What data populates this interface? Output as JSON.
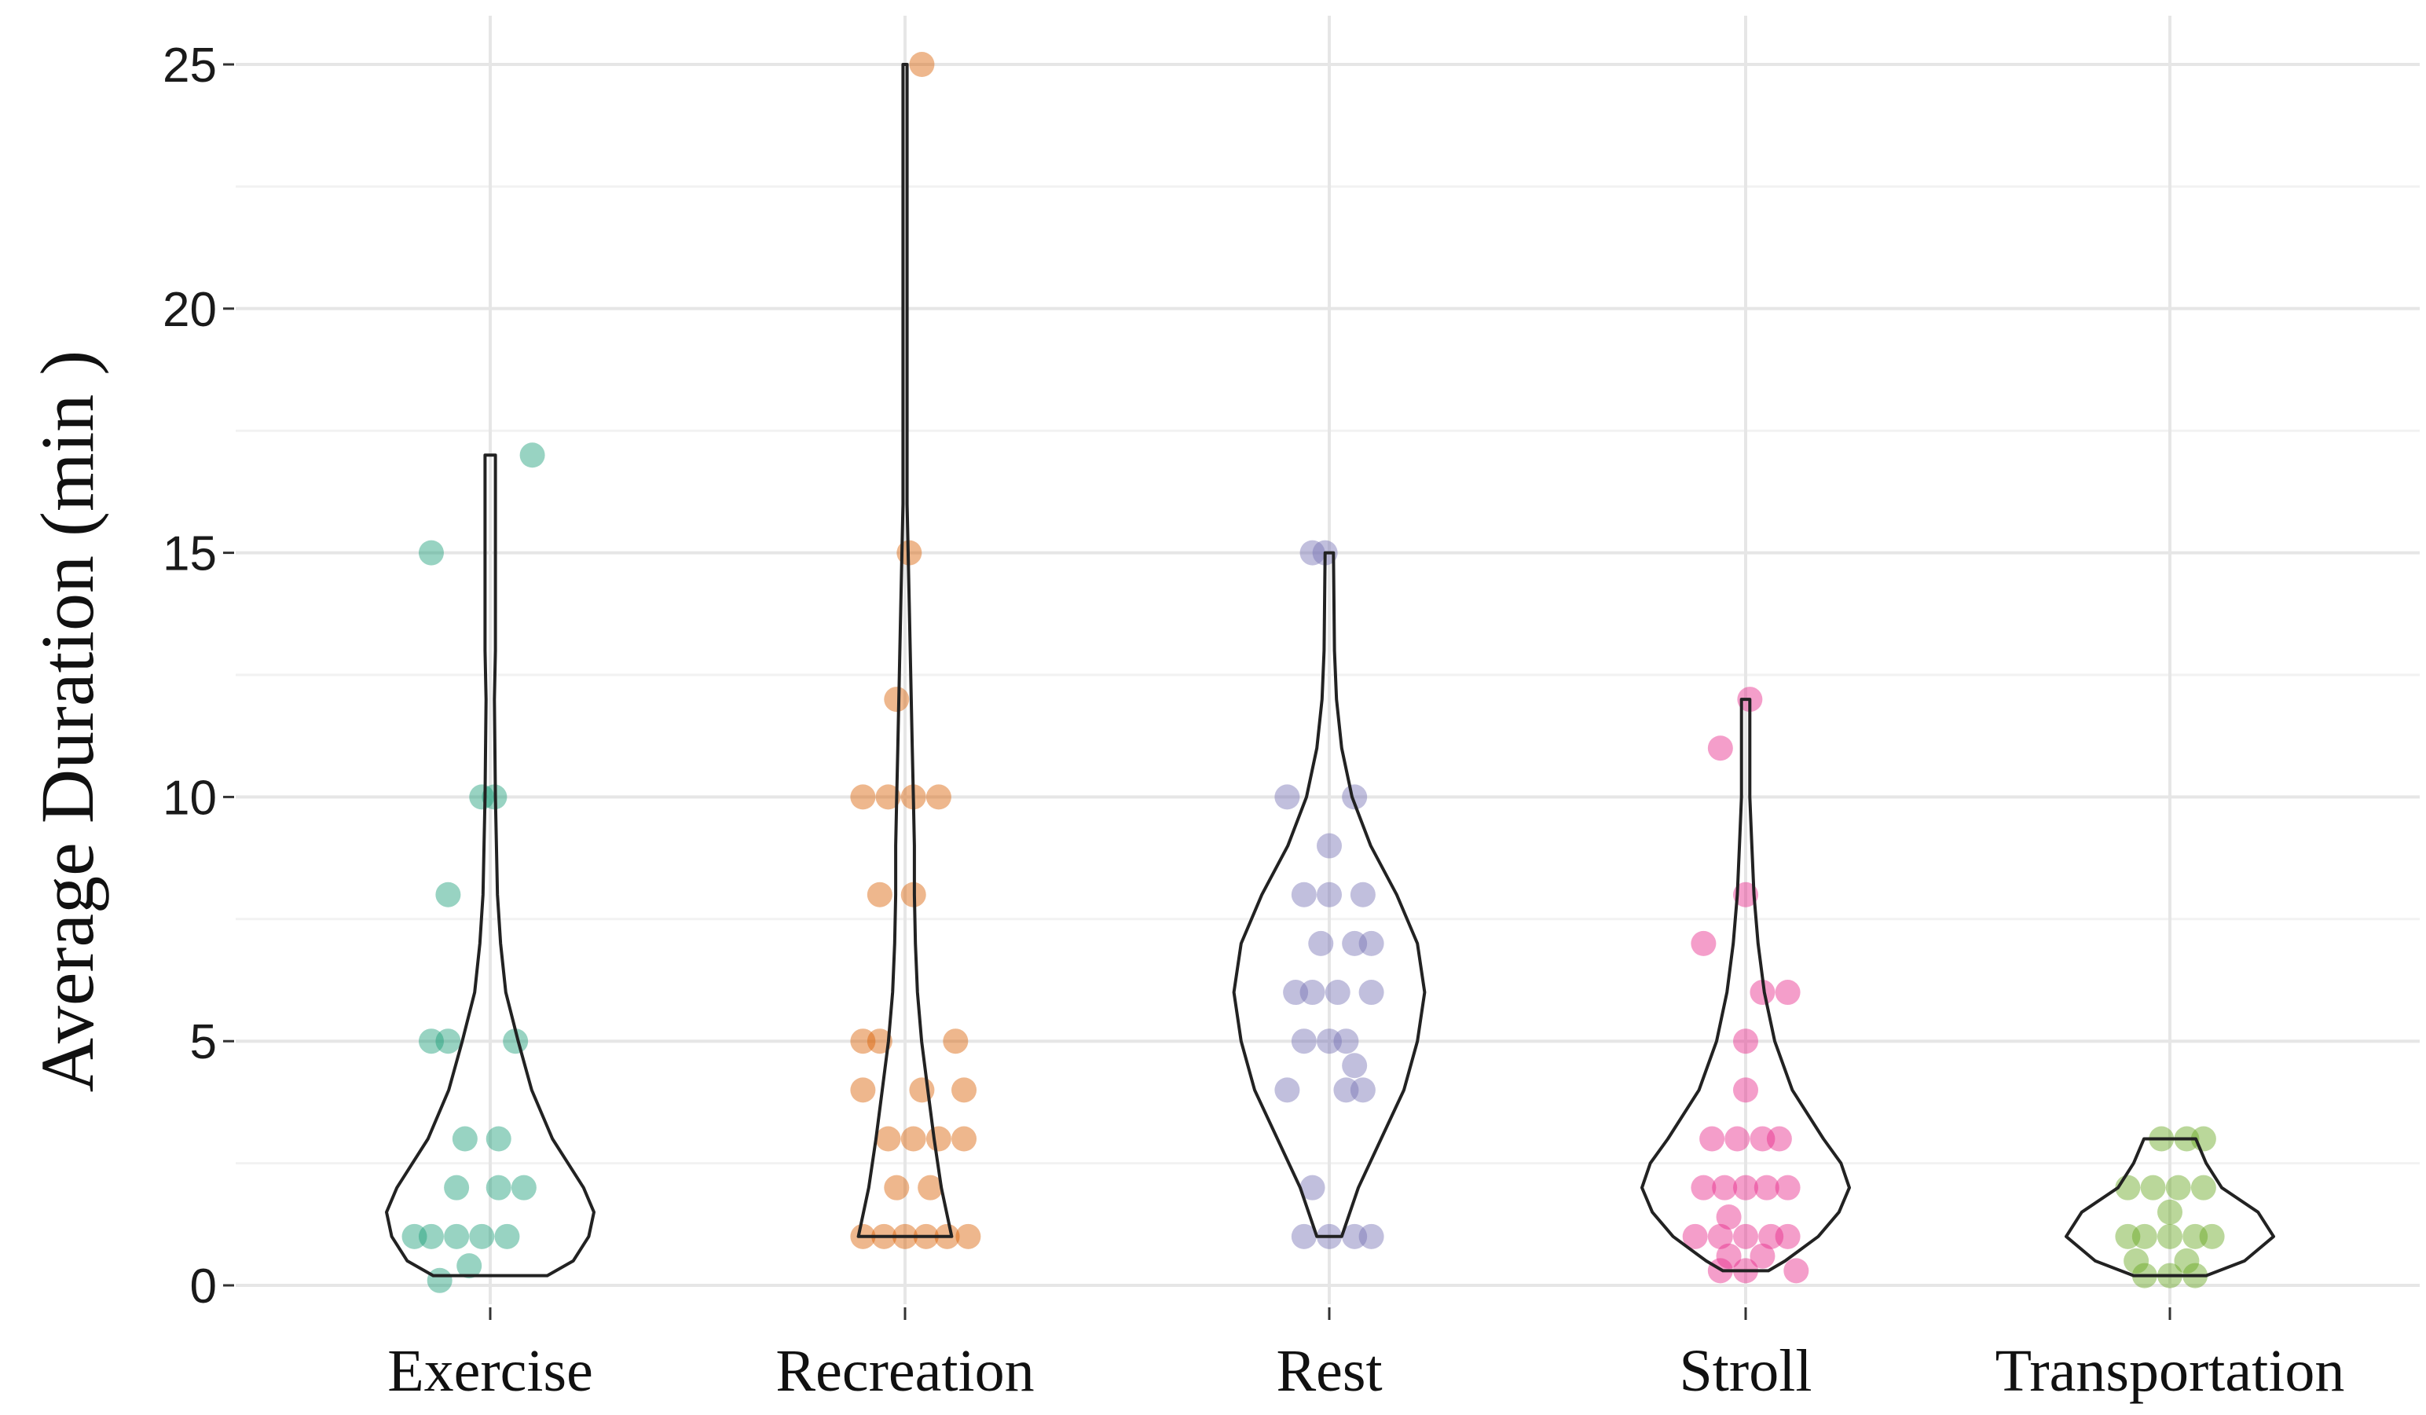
{
  "chart_data": {
    "type": "violin",
    "title": "",
    "xlabel": "",
    "ylabel": "Average Duration (min )",
    "ylim": [
      0,
      25
    ],
    "yticks": [
      0,
      5,
      10,
      15,
      20,
      25
    ],
    "grid": true,
    "categories": [
      "Exercise",
      "Recreation",
      "Rest",
      "Stroll",
      "Transportation"
    ],
    "colors": {
      "Exercise": "#1b9e77",
      "Recreation": "#d95f02",
      "Rest": "#7570b3",
      "Stroll": "#e7298a",
      "Transportation": "#66a61e"
    },
    "series": [
      {
        "name": "Exercise",
        "violin": {
          "min": 0.2,
          "max": 17,
          "profile": [
            [
              0.2,
              0.55
            ],
            [
              0.5,
              0.8
            ],
            [
              1,
              0.95
            ],
            [
              1.5,
              1
            ],
            [
              2,
              0.9
            ],
            [
              2.5,
              0.75
            ],
            [
              3,
              0.6
            ],
            [
              4,
              0.4
            ],
            [
              5,
              0.27
            ],
            [
              6,
              0.15
            ],
            [
              7,
              0.1
            ],
            [
              8,
              0.07
            ],
            [
              10,
              0.05
            ],
            [
              12,
              0.04
            ],
            [
              13,
              0.05
            ],
            [
              15,
              0.05
            ],
            [
              17,
              0.05
            ]
          ]
        },
        "points": [
          [
            -0.12,
            0.1
          ],
          [
            -0.05,
            0.4
          ],
          [
            -0.18,
            1
          ],
          [
            -0.14,
            1
          ],
          [
            -0.08,
            1
          ],
          [
            -0.02,
            1
          ],
          [
            0.04,
            1
          ],
          [
            -0.08,
            2
          ],
          [
            0.02,
            2
          ],
          [
            0.08,
            2
          ],
          [
            -0.06,
            3
          ],
          [
            0.02,
            3
          ],
          [
            -0.14,
            5
          ],
          [
            -0.1,
            5
          ],
          [
            0.06,
            5
          ],
          [
            -0.02,
            10
          ],
          [
            0.01,
            10
          ],
          [
            -0.1,
            8
          ],
          [
            -0.14,
            15
          ],
          [
            0.1,
            17
          ]
        ]
      },
      {
        "name": "Recreation",
        "violin": {
          "min": 1,
          "max": 25,
          "profile": [
            [
              1,
              0.45
            ],
            [
              1.5,
              0.4
            ],
            [
              2,
              0.35
            ],
            [
              3,
              0.28
            ],
            [
              4,
              0.22
            ],
            [
              5,
              0.16
            ],
            [
              6,
              0.12
            ],
            [
              7,
              0.1
            ],
            [
              8,
              0.09
            ],
            [
              9,
              0.09
            ],
            [
              10,
              0.08
            ],
            [
              11,
              0.07
            ],
            [
              12,
              0.06
            ],
            [
              14,
              0.04
            ],
            [
              16,
              0.02
            ],
            [
              18,
              0.02
            ],
            [
              20,
              0.02
            ],
            [
              25,
              0.02
            ]
          ]
        },
        "points": [
          [
            -0.1,
            1
          ],
          [
            -0.05,
            1
          ],
          [
            0,
            1
          ],
          [
            0.05,
            1
          ],
          [
            0.1,
            1
          ],
          [
            0.15,
            1
          ],
          [
            -0.02,
            2
          ],
          [
            0.06,
            2
          ],
          [
            -0.04,
            3
          ],
          [
            0.02,
            3
          ],
          [
            0.08,
            3
          ],
          [
            0.14,
            3
          ],
          [
            -0.1,
            4
          ],
          [
            0.04,
            4
          ],
          [
            0.14,
            4
          ],
          [
            -0.1,
            5
          ],
          [
            -0.06,
            5
          ],
          [
            0.12,
            5
          ],
          [
            -0.06,
            8
          ],
          [
            0.02,
            8
          ],
          [
            -0.1,
            10
          ],
          [
            -0.04,
            10
          ],
          [
            0.02,
            10
          ],
          [
            0.08,
            10
          ],
          [
            -0.02,
            12
          ],
          [
            0.01,
            15
          ],
          [
            0.04,
            25
          ]
        ]
      },
      {
        "name": "Rest",
        "violin": {
          "min": 1,
          "max": 15,
          "profile": [
            [
              1,
              0.12
            ],
            [
              2,
              0.28
            ],
            [
              3,
              0.5
            ],
            [
              4,
              0.72
            ],
            [
              5,
              0.85
            ],
            [
              6,
              0.92
            ],
            [
              7,
              0.85
            ],
            [
              8,
              0.65
            ],
            [
              9,
              0.4
            ],
            [
              10,
              0.22
            ],
            [
              11,
              0.12
            ],
            [
              12,
              0.07
            ],
            [
              13,
              0.05
            ],
            [
              15,
              0.04
            ]
          ]
        },
        "points": [
          [
            -0.06,
            1
          ],
          [
            0,
            1
          ],
          [
            0.06,
            1
          ],
          [
            0.1,
            1
          ],
          [
            -0.04,
            2
          ],
          [
            -0.1,
            4
          ],
          [
            0.04,
            4
          ],
          [
            0.08,
            4
          ],
          [
            -0.06,
            5
          ],
          [
            0,
            5
          ],
          [
            0.04,
            5
          ],
          [
            0.06,
            4.5
          ],
          [
            -0.08,
            6
          ],
          [
            -0.04,
            6
          ],
          [
            0.02,
            6
          ],
          [
            0.1,
            6
          ],
          [
            -0.02,
            7
          ],
          [
            0.06,
            7
          ],
          [
            0.1,
            7
          ],
          [
            -0.06,
            8
          ],
          [
            0,
            8
          ],
          [
            0.08,
            8
          ],
          [
            0,
            9
          ],
          [
            -0.1,
            10
          ],
          [
            0.06,
            10
          ],
          [
            -0.04,
            15
          ],
          [
            -0.01,
            15
          ]
        ]
      },
      {
        "name": "Stroll",
        "violin": {
          "min": 0.3,
          "max": 12,
          "profile": [
            [
              0.3,
              0.22
            ],
            [
              0.5,
              0.38
            ],
            [
              1,
              0.7
            ],
            [
              1.5,
              0.9
            ],
            [
              2,
              1
            ],
            [
              2.5,
              0.92
            ],
            [
              3,
              0.75
            ],
            [
              4,
              0.45
            ],
            [
              5,
              0.28
            ],
            [
              6,
              0.18
            ],
            [
              7,
              0.12
            ],
            [
              8,
              0.08
            ],
            [
              9,
              0.06
            ],
            [
              10,
              0.04
            ],
            [
              12,
              0.04
            ]
          ]
        },
        "points": [
          [
            -0.06,
            0.3
          ],
          [
            0,
            0.3
          ],
          [
            0.12,
            0.3
          ],
          [
            -0.04,
            0.6
          ],
          [
            0.04,
            0.6
          ],
          [
            -0.12,
            1
          ],
          [
            -0.06,
            1
          ],
          [
            0,
            1
          ],
          [
            0.06,
            1
          ],
          [
            0.1,
            1
          ],
          [
            -0.1,
            2
          ],
          [
            -0.05,
            2
          ],
          [
            0,
            2
          ],
          [
            0.05,
            2
          ],
          [
            0.1,
            2
          ],
          [
            -0.08,
            3
          ],
          [
            -0.02,
            3
          ],
          [
            0.04,
            3
          ],
          [
            0.08,
            3
          ],
          [
            0,
            4
          ],
          [
            0,
            5
          ],
          [
            0.04,
            6
          ],
          [
            0.1,
            6
          ],
          [
            -0.04,
            1.4
          ],
          [
            -0.1,
            7
          ],
          [
            0,
            8
          ],
          [
            -0.06,
            11
          ],
          [
            0.01,
            12
          ]
        ]
      },
      {
        "name": "Transportation",
        "violin": {
          "min": 0.2,
          "max": 3,
          "profile": [
            [
              0.2,
              0.35
            ],
            [
              0.5,
              0.72
            ],
            [
              1,
              1
            ],
            [
              1.5,
              0.85
            ],
            [
              2,
              0.5
            ],
            [
              2.5,
              0.35
            ],
            [
              3,
              0.25
            ]
          ]
        },
        "points": [
          [
            -0.06,
            0.2
          ],
          [
            0,
            0.2
          ],
          [
            0.06,
            0.2
          ],
          [
            -0.08,
            0.5
          ],
          [
            0.04,
            0.5
          ],
          [
            -0.1,
            1
          ],
          [
            -0.06,
            1
          ],
          [
            0,
            1
          ],
          [
            0.06,
            1
          ],
          [
            0.1,
            1
          ],
          [
            0,
            1.5
          ],
          [
            -0.1,
            2
          ],
          [
            -0.04,
            2
          ],
          [
            0.02,
            2
          ],
          [
            0.08,
            2
          ],
          [
            -0.02,
            3
          ],
          [
            0.04,
            3
          ],
          [
            0.08,
            3
          ]
        ]
      }
    ]
  }
}
